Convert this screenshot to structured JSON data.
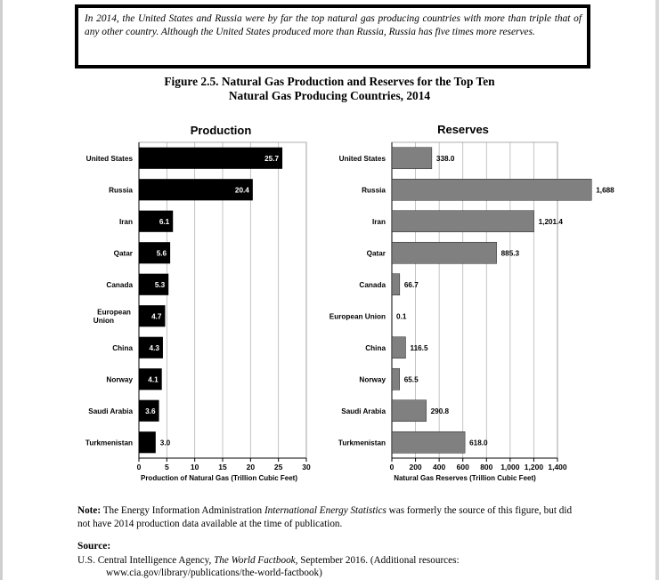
{
  "callout": {
    "text": "In 2014, the United States and Russia were by far the top natural gas producing countries with more than triple that of any other country. Although the United States produced more than Russia, Russia has five times more reserves."
  },
  "figure": {
    "title_line1": "Figure 2.5.  Natural Gas Production and Reserves for the Top Ten",
    "title_line2": "Natural Gas Producing Countries, 2014"
  },
  "chart_data": [
    {
      "type": "bar",
      "orientation": "horizontal",
      "title": "Production",
      "xlabel": "Production of Natural Gas (Trillion Cubic Feet)",
      "categories": [
        "United States",
        "Russia",
        "Iran",
        "Qatar",
        "Canada",
        "European Union",
        "China",
        "Norway",
        "Saudi Arabia",
        "Turkmenistan"
      ],
      "category_labels": [
        [
          "United States"
        ],
        [
          "Russia"
        ],
        [
          "Iran"
        ],
        [
          "Qatar"
        ],
        [
          "Canada"
        ],
        [
          "European",
          "Union"
        ],
        [
          "China"
        ],
        [
          "Norway"
        ],
        [
          "Saudi Arabia"
        ],
        [
          "Turkmenistan"
        ]
      ],
      "values": [
        25.7,
        20.4,
        6.1,
        5.6,
        5.3,
        4.7,
        4.3,
        4.1,
        3.6,
        3.0
      ],
      "value_labels": [
        "25.7",
        "20.4",
        "6.1",
        "5.6",
        "5.3",
        "4.7",
        "4.3",
        "4.1",
        "3.6",
        "3.0"
      ],
      "xlim": [
        0,
        30
      ],
      "xticks": [
        0,
        5,
        10,
        15,
        20,
        25,
        30
      ],
      "grid": true,
      "bar_color": "#000000"
    },
    {
      "type": "bar",
      "orientation": "horizontal",
      "title": "Reserves",
      "xlabel": "Natural Gas Reserves (Trillion Cubic Feet)",
      "categories": [
        "United States",
        "Russia",
        "Iran",
        "Qatar",
        "Canada",
        "European Union",
        "China",
        "Norway",
        "Saudi Arabia",
        "Turkmenistan"
      ],
      "category_labels": [
        [
          "United States"
        ],
        [
          "Russia"
        ],
        [
          "Iran"
        ],
        [
          "Qatar"
        ],
        [
          "Canada"
        ],
        [
          "European Union"
        ],
        [
          "China"
        ],
        [
          "Norway"
        ],
        [
          "Saudi Arabia"
        ],
        [
          "Turkmenistan"
        ]
      ],
      "values": [
        338.0,
        1688,
        1201.4,
        885.3,
        66.7,
        0.1,
        116.5,
        65.5,
        290.8,
        618.0
      ],
      "value_labels": [
        "338.0",
        "1,688",
        "1,201.4",
        "885.3",
        "66.7",
        "0.1",
        "116.5",
        "65.5",
        "290.8",
        "618.0"
      ],
      "xlim": [
        0,
        1400
      ],
      "xticks": [
        0,
        200,
        400,
        600,
        800,
        1000,
        1200,
        1400
      ],
      "xtick_labels": [
        "0",
        "200",
        "400",
        "600",
        "800",
        "1,000",
        "1,200",
        "1,400"
      ],
      "grid": true,
      "bar_color": "#808080"
    }
  ],
  "note": {
    "label": "Note:",
    "text_before": " The Energy Information Administration ",
    "italic": "International Energy Statistics",
    "text_after": " was formerly the source of this figure, but did not have 2014 production data available at the time of publication."
  },
  "source": {
    "heading": "Source:",
    "text_before": "U.S. Central Intelligence Agency, ",
    "italic": "The World Factbook",
    "text_after": ", September 2016. (Additional resources:",
    "line2": "www.cia.gov/library/publications/the-world-factbook)"
  }
}
